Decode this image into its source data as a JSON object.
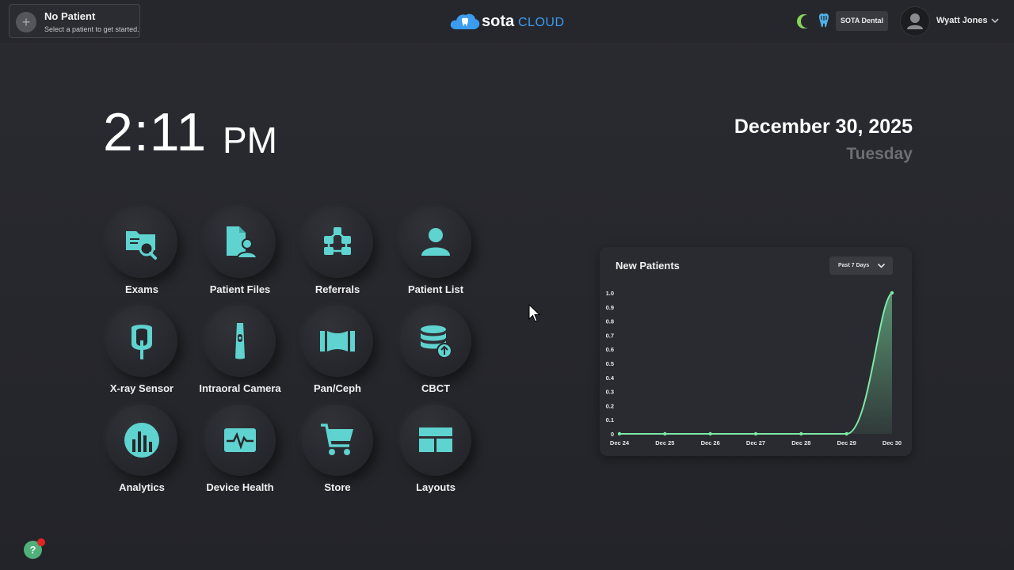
{
  "header": {
    "patient": {
      "title": "No Patient",
      "subtitle": "Select a patient to get started.",
      "add_icon": "plus-icon"
    },
    "logo": {
      "part1": "sota",
      "part2": "CLOUD"
    },
    "org_name": "SOTA Dental",
    "user_name": "Wyatt Jones"
  },
  "clock": {
    "time": "2:11",
    "period": "PM",
    "date": "December 30, 2025",
    "weekday": "Tuesday"
  },
  "tiles": [
    {
      "label": "Exams",
      "icon": "folder-search-icon"
    },
    {
      "label": "Patient Files",
      "icon": "patient-file-icon"
    },
    {
      "label": "Referrals",
      "icon": "referrals-network-icon"
    },
    {
      "label": "Patient List",
      "icon": "person-icon"
    },
    {
      "label": "X-ray Sensor",
      "icon": "xray-sensor-icon"
    },
    {
      "label": "Intraoral Camera",
      "icon": "intraoral-camera-icon"
    },
    {
      "label": "Pan/Ceph",
      "icon": "panoramic-icon"
    },
    {
      "label": "CBCT",
      "icon": "database-upload-icon"
    },
    {
      "label": "Analytics",
      "icon": "analytics-icon"
    },
    {
      "label": "Device Health",
      "icon": "heartbeat-icon"
    },
    {
      "label": "Store",
      "icon": "cart-icon"
    },
    {
      "label": "Layouts",
      "icon": "layout-icon"
    }
  ],
  "chart_data": {
    "type": "area",
    "title": "New Patients",
    "range_label": "Past 7 Days",
    "categories": [
      "Dec 24",
      "Dec 25",
      "Dec 26",
      "Dec 27",
      "Dec 28",
      "Dec 29",
      "Dec 30"
    ],
    "values": [
      0,
      0,
      0,
      0,
      0,
      0,
      1
    ],
    "ylim": [
      0,
      1
    ],
    "y_ticks": [
      "0",
      "0.1",
      "0.2",
      "0.3",
      "0.4",
      "0.5",
      "0.6",
      "0.7",
      "0.8",
      "0.9",
      "1.0"
    ],
    "grid": false,
    "color": "#7ee8a8"
  },
  "help": {
    "label": "?"
  },
  "colors": {
    "accent": "#5fd3cf",
    "brand_blue": "#3b9cf0",
    "chart_line": "#7ee8a8",
    "background": "#25262b"
  }
}
